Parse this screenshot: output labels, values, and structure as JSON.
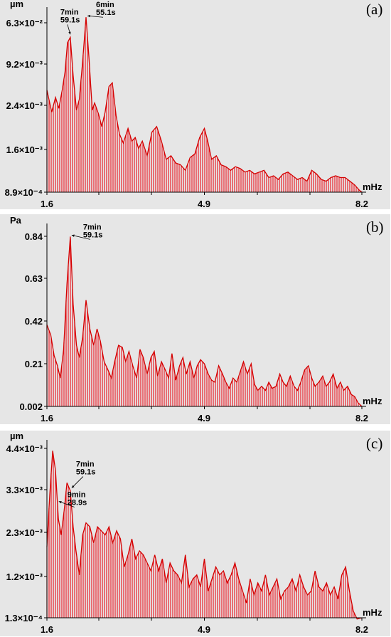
{
  "chart_data": [
    {
      "type": "area",
      "panel_label": "(a)",
      "ylabel": "µm",
      "xlabel": "mHz",
      "xlim": [
        1.6,
        8.2
      ],
      "x_ticks": [
        "1.6",
        "4.9",
        "8.2"
      ],
      "y_ticks": [
        "6.3×10⁻²",
        "9.2×10⁻³",
        "2.4×10⁻³",
        "1.6×10⁻³",
        "8.9×10⁻⁴"
      ],
      "annotations": [
        {
          "line1": "7min",
          "line2": "59.1s",
          "x": 2.09
        },
        {
          "line1": "6min",
          "line2": "55.1s",
          "x": 2.42
        }
      ],
      "x": [
        1.6,
        1.7,
        1.78,
        1.85,
        1.92,
        1.98,
        2.03,
        2.09,
        2.15,
        2.22,
        2.28,
        2.35,
        2.42,
        2.48,
        2.55,
        2.6,
        2.68,
        2.75,
        2.82,
        2.9,
        2.97,
        3.05,
        3.12,
        3.2,
        3.3,
        3.38,
        3.45,
        3.52,
        3.6,
        3.7,
        3.8,
        3.9,
        4.0,
        4.1,
        4.2,
        4.3,
        4.4,
        4.5,
        4.6,
        4.7,
        4.8,
        4.9,
        4.97,
        5.05,
        5.15,
        5.25,
        5.35,
        5.45,
        5.55,
        5.65,
        5.75,
        5.85,
        5.95,
        6.05,
        6.15,
        6.25,
        6.35,
        6.45,
        6.55,
        6.65,
        6.75,
        6.85,
        6.95,
        7.05,
        7.15,
        7.25,
        7.35,
        7.45,
        7.55,
        7.65,
        7.75,
        7.85,
        7.95,
        8.05,
        8.15,
        8.2
      ],
      "y_rel": [
        0.56,
        0.44,
        0.52,
        0.46,
        0.56,
        0.66,
        0.82,
        0.85,
        0.64,
        0.45,
        0.51,
        0.72,
        0.96,
        0.74,
        0.45,
        0.49,
        0.43,
        0.36,
        0.44,
        0.58,
        0.6,
        0.42,
        0.32,
        0.27,
        0.35,
        0.28,
        0.3,
        0.24,
        0.28,
        0.2,
        0.33,
        0.36,
        0.28,
        0.18,
        0.2,
        0.16,
        0.15,
        0.12,
        0.19,
        0.21,
        0.3,
        0.35,
        0.28,
        0.18,
        0.2,
        0.15,
        0.14,
        0.12,
        0.14,
        0.13,
        0.11,
        0.12,
        0.1,
        0.11,
        0.12,
        0.08,
        0.09,
        0.07,
        0.1,
        0.11,
        0.09,
        0.07,
        0.08,
        0.06,
        0.12,
        0.1,
        0.07,
        0.06,
        0.08,
        0.09,
        0.08,
        0.08,
        0.06,
        0.04,
        0.01,
        0.0
      ]
    },
    {
      "type": "area",
      "panel_label": "(b)",
      "ylabel": "Pa",
      "xlabel": "mHz",
      "xlim": [
        1.6,
        8.2
      ],
      "ylim": [
        0.002,
        0.88
      ],
      "x_ticks": [
        "1.6",
        "4.9",
        "8.2"
      ],
      "y_ticks": [
        "0.84",
        "0.63",
        "0.42",
        "0.21",
        "0.002"
      ],
      "annotations": [
        {
          "line1": "7min",
          "line2": "59.1s",
          "x": 2.09
        }
      ],
      "x": [
        1.6,
        1.68,
        1.75,
        1.82,
        1.88,
        1.95,
        2.02,
        2.09,
        2.15,
        2.22,
        2.28,
        2.35,
        2.42,
        2.5,
        2.58,
        2.65,
        2.72,
        2.8,
        2.88,
        2.95,
        3.02,
        3.1,
        3.18,
        3.25,
        3.32,
        3.4,
        3.48,
        3.55,
        3.62,
        3.7,
        3.78,
        3.85,
        3.92,
        4.0,
        4.08,
        4.15,
        4.22,
        4.3,
        4.38,
        4.45,
        4.52,
        4.6,
        4.68,
        4.75,
        4.82,
        4.9,
        4.98,
        5.05,
        5.12,
        5.2,
        5.28,
        5.35,
        5.42,
        5.5,
        5.58,
        5.65,
        5.72,
        5.8,
        5.88,
        5.95,
        6.02,
        6.1,
        6.18,
        6.25,
        6.32,
        6.4,
        6.48,
        6.55,
        6.62,
        6.7,
        6.78,
        6.85,
        6.92,
        7.0,
        7.08,
        7.15,
        7.22,
        7.3,
        7.38,
        7.45,
        7.52,
        7.6,
        7.68,
        7.75,
        7.82,
        7.9,
        7.98,
        8.05,
        8.12,
        8.2
      ],
      "y": [
        0.4,
        0.35,
        0.25,
        0.2,
        0.14,
        0.28,
        0.6,
        0.83,
        0.5,
        0.3,
        0.24,
        0.34,
        0.52,
        0.38,
        0.3,
        0.38,
        0.32,
        0.22,
        0.18,
        0.14,
        0.22,
        0.3,
        0.29,
        0.22,
        0.27,
        0.2,
        0.14,
        0.28,
        0.24,
        0.16,
        0.24,
        0.27,
        0.15,
        0.22,
        0.18,
        0.14,
        0.26,
        0.13,
        0.2,
        0.24,
        0.16,
        0.22,
        0.14,
        0.2,
        0.23,
        0.21,
        0.16,
        0.13,
        0.12,
        0.2,
        0.16,
        0.12,
        0.09,
        0.14,
        0.12,
        0.17,
        0.22,
        0.16,
        0.21,
        0.11,
        0.08,
        0.1,
        0.08,
        0.12,
        0.09,
        0.1,
        0.16,
        0.12,
        0.1,
        0.15,
        0.1,
        0.08,
        0.12,
        0.18,
        0.2,
        0.14,
        0.1,
        0.12,
        0.15,
        0.1,
        0.12,
        0.16,
        0.09,
        0.12,
        0.08,
        0.1,
        0.06,
        0.05,
        0.02,
        0.002
      ]
    },
    {
      "type": "area",
      "panel_label": "(c)",
      "ylabel": "µm",
      "xlabel": "mHz",
      "xlim": [
        1.6,
        8.2
      ],
      "ylim": [
        0.00013,
        0.0045
      ],
      "x_ticks": [
        "1.6",
        "4.9",
        "8.2"
      ],
      "y_ticks": [
        "4.4×10⁻³",
        "3.3×10⁻³",
        "2.3×10⁻³",
        "1.2×10⁻³",
        "1.3×10⁻⁴"
      ],
      "annotations": [
        {
          "line1": "9min",
          "line2": "28.9s",
          "x": 1.82
        },
        {
          "line1": "7min",
          "line2": "59.1s",
          "x": 2.09
        }
      ],
      "x": [
        1.6,
        1.66,
        1.72,
        1.78,
        1.84,
        1.9,
        1.96,
        2.02,
        2.09,
        2.15,
        2.21,
        2.28,
        2.35,
        2.42,
        2.5,
        2.58,
        2.66,
        2.74,
        2.82,
        2.9,
        2.98,
        3.06,
        3.14,
        3.22,
        3.3,
        3.38,
        3.46,
        3.54,
        3.62,
        3.7,
        3.78,
        3.86,
        3.94,
        4.02,
        4.1,
        4.18,
        4.26,
        4.34,
        4.42,
        4.5,
        4.58,
        4.66,
        4.74,
        4.82,
        4.9,
        4.98,
        5.06,
        5.14,
        5.22,
        5.3,
        5.38,
        5.46,
        5.54,
        5.62,
        5.7,
        5.78,
        5.86,
        5.94,
        6.02,
        6.1,
        6.18,
        6.26,
        6.34,
        6.42,
        6.5,
        6.58,
        6.66,
        6.74,
        6.82,
        6.9,
        6.98,
        7.06,
        7.14,
        7.22,
        7.3,
        7.38,
        7.46,
        7.54,
        7.62,
        7.7,
        7.78,
        7.86,
        7.94,
        8.02,
        8.1,
        8.2
      ],
      "y": [
        0.0019,
        0.0032,
        0.0043,
        0.0038,
        0.0026,
        0.0022,
        0.0028,
        0.0035,
        0.0033,
        0.0024,
        0.0018,
        0.0012,
        0.0022,
        0.0025,
        0.0024,
        0.002,
        0.0024,
        0.0023,
        0.0022,
        0.0024,
        0.002,
        0.0023,
        0.0021,
        0.0014,
        0.0017,
        0.0021,
        0.0016,
        0.0018,
        0.0017,
        0.0015,
        0.0013,
        0.0017,
        0.0013,
        0.0016,
        0.001,
        0.0015,
        0.0013,
        0.0012,
        0.001,
        0.0017,
        0.0009,
        0.0011,
        0.0012,
        0.0009,
        0.0016,
        0.0008,
        0.0011,
        0.0014,
        0.0012,
        0.0013,
        0.001,
        0.0012,
        0.0015,
        0.0011,
        0.0008,
        0.0005,
        0.0011,
        0.0007,
        0.001,
        0.0008,
        0.0012,
        0.0007,
        0.0009,
        0.0011,
        0.0006,
        0.0008,
        0.0009,
        0.0011,
        0.0008,
        0.0012,
        0.0009,
        0.0007,
        0.0008,
        0.0013,
        0.0009,
        0.0008,
        0.001,
        0.0007,
        0.0009,
        0.0006,
        0.0012,
        0.0014,
        0.0008,
        0.0003,
        0.0001,
        0.00013
      ]
    }
  ],
  "colors": {
    "background": "#e6e6e6",
    "bar": "#e8202a",
    "line": "#d40000",
    "axis": "#000000"
  }
}
